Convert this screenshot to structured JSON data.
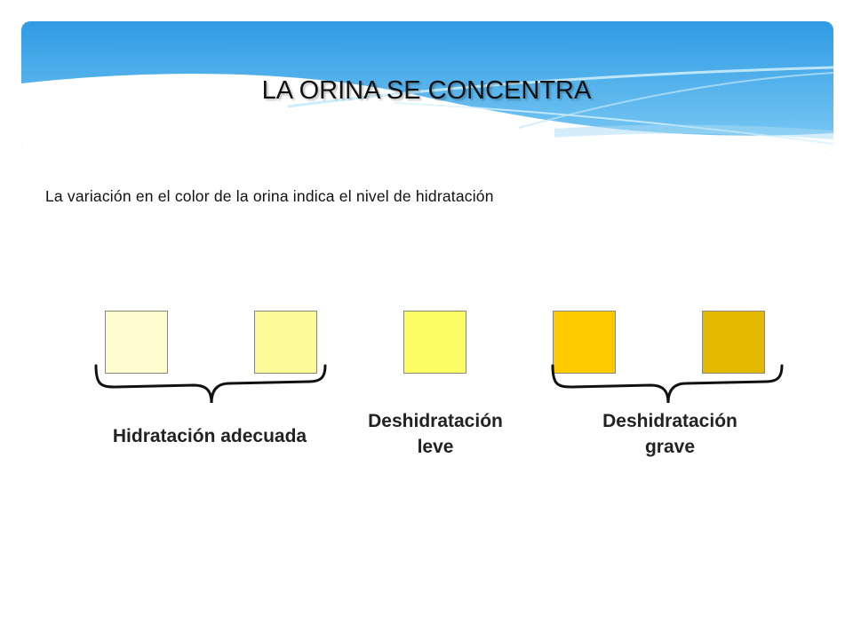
{
  "slide": {
    "title": "LA ORINA SE CONCENTRA",
    "subtitle": "La variación en el color de la orina indica el nivel de hidratación"
  },
  "swatches": [
    {
      "color": "#fefdd0"
    },
    {
      "color": "#fdfb99"
    },
    {
      "color": "#fdfd64"
    },
    {
      "color": "#fecb00"
    },
    {
      "color": "#e2b800"
    }
  ],
  "groups": [
    {
      "label": "Hidratación adecuada"
    },
    {
      "label_line1": "Deshidratación",
      "label_line2": "leve"
    },
    {
      "label_line1": "Deshidratación",
      "label_line2": "grave"
    }
  ],
  "theme": {
    "header_blue": "#3aa3e6",
    "header_light": "#9fd8f7"
  }
}
